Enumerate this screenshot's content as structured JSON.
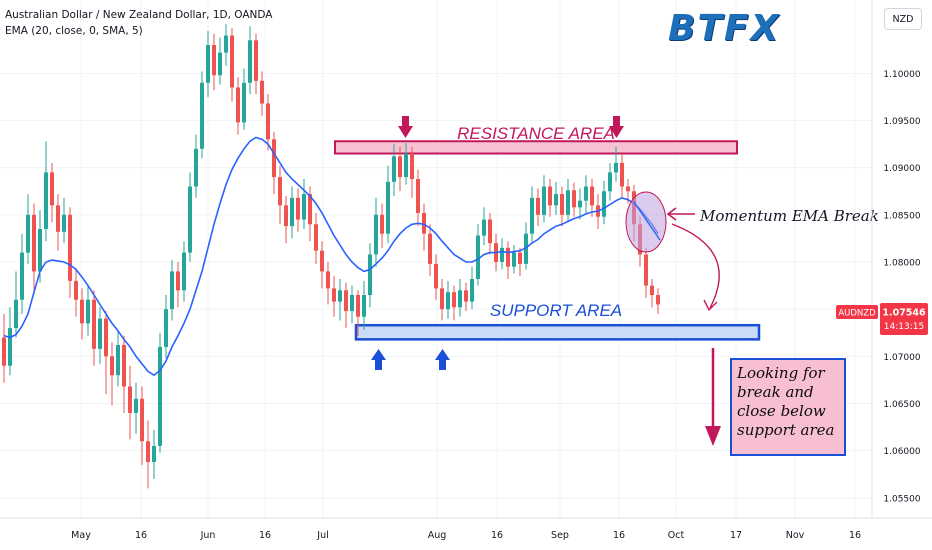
{
  "header": {
    "symbol_title": "Australian Dollar / New Zealand Dollar, 1D, OANDA",
    "indicator": "EMA (20, close, 0, SMA, 5)",
    "logo": "BTFX",
    "currency_button": "NZD"
  },
  "price_badge": {
    "symbol": "AUDNZD",
    "price": "1.07546",
    "countdown": "14:13:15",
    "color": "#f23645"
  },
  "annotations": {
    "resistance_label": "RESISTANCE AREA",
    "support_label": "SUPPORT AREA",
    "ema_break_label": "Momentum EMA Break",
    "note_text": "Looking for break and close below support area",
    "resistance_color": "#c2185b",
    "support_color": "#1a4fd6"
  },
  "chart_data": {
    "type": "candlestick",
    "ylim": [
      1.0535,
      1.1065
    ],
    "y_ticks": [
      1.055,
      1.06,
      1.065,
      1.07,
      1.075,
      1.08,
      1.085,
      1.09,
      1.095,
      1.1
    ],
    "y_tick_labels": [
      "1.05500",
      "1.06000",
      "1.06500",
      "1.07000",
      "1.07500",
      "1.08000",
      "1.08500",
      "1.09000",
      "1.09500",
      "1.10000"
    ],
    "x_labels": [
      "May",
      "16",
      "Jun",
      "16",
      "Jul",
      "Aug",
      "16",
      "Sep",
      "16",
      "Oct",
      "17",
      "Nov",
      "16"
    ],
    "resistance_zone": [
      1.0915,
      1.0928
    ],
    "support_zone": [
      1.0718,
      1.0733
    ],
    "colors": {
      "up": "#26a69a",
      "down": "#ef5350",
      "ema": "#2962ff"
    },
    "candles": [
      [
        1.072,
        1.069,
        1.0745,
        1.0672
      ],
      [
        1.069,
        1.073,
        1.0752,
        1.068
      ],
      [
        1.073,
        1.076,
        1.079,
        1.072
      ],
      [
        1.076,
        1.081,
        1.083,
        1.0745
      ],
      [
        1.081,
        1.085,
        1.0872,
        1.0798
      ],
      [
        1.085,
        1.079,
        1.0862,
        1.077
      ],
      [
        1.079,
        1.0835,
        1.0855,
        1.0778
      ],
      [
        1.0835,
        1.0895,
        1.0928,
        1.0822
      ],
      [
        1.0895,
        1.086,
        1.0905,
        1.0842
      ],
      [
        1.086,
        1.0832,
        1.0872,
        1.0812
      ],
      [
        1.0832,
        1.085,
        1.0868,
        1.082
      ],
      [
        1.085,
        1.078,
        1.0858,
        1.0762
      ],
      [
        1.078,
        1.076,
        1.0792,
        1.0742
      ],
      [
        1.076,
        1.0735,
        1.0772,
        1.0718
      ],
      [
        1.0735,
        1.076,
        1.0776,
        1.0722
      ],
      [
        1.076,
        1.0708,
        1.077,
        1.069
      ],
      [
        1.0708,
        1.074,
        1.0752,
        1.0692
      ],
      [
        1.074,
        1.07,
        1.0748,
        1.066
      ],
      [
        1.07,
        1.068,
        1.0715,
        1.0648
      ],
      [
        1.068,
        1.0712,
        1.0728,
        1.0668
      ],
      [
        1.0712,
        1.0668,
        1.0722,
        1.064
      ],
      [
        1.0668,
        1.064,
        1.069,
        1.0612
      ],
      [
        1.064,
        1.0655,
        1.0672,
        1.0618
      ],
      [
        1.0655,
        1.061,
        1.0668,
        1.0585
      ],
      [
        1.061,
        1.0588,
        1.0632,
        1.056
      ],
      [
        1.0588,
        1.0605,
        1.0622,
        1.057
      ],
      [
        1.0605,
        1.071,
        1.0725,
        1.0598
      ],
      [
        1.071,
        1.075,
        1.0765,
        1.0698
      ],
      [
        1.075,
        1.079,
        1.0802,
        1.0738
      ],
      [
        1.079,
        1.077,
        1.08,
        1.0752
      ],
      [
        1.077,
        1.081,
        1.0822,
        1.0758
      ],
      [
        1.081,
        1.088,
        1.0895,
        1.08
      ],
      [
        1.088,
        1.092,
        1.0935,
        1.0868
      ],
      [
        1.092,
        1.099,
        1.1002,
        1.091
      ],
      [
        1.099,
        1.103,
        1.1045,
        1.0975
      ],
      [
        1.103,
        1.0998,
        1.1042,
        1.0982
      ],
      [
        1.0998,
        1.1022,
        1.1038,
        1.0988
      ],
      [
        1.1022,
        1.104,
        1.1052,
        1.1008
      ],
      [
        1.104,
        1.0985,
        1.1048,
        1.097
      ],
      [
        1.0985,
        1.0948,
        1.0996,
        1.0935
      ],
      [
        1.0948,
        1.099,
        1.1005,
        1.094
      ],
      [
        1.099,
        1.1035,
        1.105,
        1.0978
      ],
      [
        1.1035,
        1.0992,
        1.1042,
        1.0978
      ],
      [
        1.0992,
        1.0968,
        1.1002,
        1.0955
      ],
      [
        1.0968,
        1.093,
        1.0978,
        1.0918
      ],
      [
        1.093,
        1.089,
        1.0938,
        1.0872
      ],
      [
        1.089,
        1.086,
        1.0902,
        1.084
      ],
      [
        1.086,
        1.0838,
        1.087,
        1.082
      ],
      [
        1.0838,
        1.0868,
        1.088,
        1.0825
      ],
      [
        1.0868,
        1.0845,
        1.0878,
        1.0832
      ],
      [
        1.0845,
        1.0872,
        1.0888,
        1.0835
      ],
      [
        1.0872,
        1.084,
        1.088,
        1.0822
      ],
      [
        1.084,
        1.0812,
        1.0852,
        1.0798
      ],
      [
        1.0812,
        1.079,
        1.0822,
        1.0772
      ],
      [
        1.079,
        1.0772,
        1.08,
        1.0755
      ],
      [
        1.0772,
        1.0758,
        1.0785,
        1.0742
      ],
      [
        1.0758,
        1.077,
        1.0782,
        1.0738
      ],
      [
        1.077,
        1.0748,
        1.0778,
        1.073
      ],
      [
        1.0748,
        1.0765,
        1.0775,
        1.0735
      ],
      [
        1.0765,
        1.0742,
        1.077,
        1.0722
      ],
      [
        1.0742,
        1.0765,
        1.078,
        1.0728
      ],
      [
        1.0765,
        1.0808,
        1.082,
        1.0752
      ],
      [
        1.0808,
        1.085,
        1.0868,
        1.0795
      ],
      [
        1.085,
        1.083,
        1.0862,
        1.0815
      ],
      [
        1.083,
        1.0885,
        1.0902,
        1.082
      ],
      [
        1.0885,
        1.0912,
        1.0925,
        1.087
      ],
      [
        1.0912,
        1.089,
        1.0922,
        1.0875
      ],
      [
        1.089,
        1.0915,
        1.0926,
        1.0882
      ],
      [
        1.0915,
        1.0888,
        1.0922,
        1.0868
      ],
      [
        1.0888,
        1.0852,
        1.0898,
        1.0838
      ],
      [
        1.0852,
        1.083,
        1.0862,
        1.0812
      ],
      [
        1.083,
        1.0798,
        1.084,
        1.0785
      ],
      [
        1.0798,
        1.0772,
        1.0808,
        1.076
      ],
      [
        1.0772,
        1.075,
        1.0782,
        1.0738
      ],
      [
        1.075,
        1.0768,
        1.078,
        1.074
      ],
      [
        1.0768,
        1.0752,
        1.0775,
        1.0738
      ],
      [
        1.0752,
        1.077,
        1.0782,
        1.0742
      ],
      [
        1.077,
        1.0758,
        1.0778,
        1.0748
      ],
      [
        1.0758,
        1.0782,
        1.0795,
        1.075
      ],
      [
        1.0782,
        1.0828,
        1.084,
        1.0775
      ],
      [
        1.0828,
        1.0845,
        1.0858,
        1.0818
      ],
      [
        1.0845,
        1.082,
        1.0852,
        1.0808
      ],
      [
        1.082,
        1.08,
        1.083,
        1.079
      ],
      [
        1.08,
        1.0815,
        1.0825,
        1.0792
      ],
      [
        1.0815,
        1.0795,
        1.0822,
        1.0782
      ],
      [
        1.0795,
        1.081,
        1.0818,
        1.0788
      ],
      [
        1.081,
        1.0798,
        1.0815,
        1.0785
      ],
      [
        1.0798,
        1.083,
        1.0842,
        1.0792
      ],
      [
        1.083,
        1.0868,
        1.088,
        1.082
      ],
      [
        1.0868,
        1.085,
        1.0878,
        1.0838
      ],
      [
        1.085,
        1.088,
        1.0892,
        1.0842
      ],
      [
        1.088,
        1.086,
        1.0888,
        1.0848
      ],
      [
        1.086,
        1.0872,
        1.0885,
        1.085
      ],
      [
        1.0872,
        1.085,
        1.088,
        1.0838
      ],
      [
        1.085,
        1.0876,
        1.0888,
        1.0842
      ],
      [
        1.0876,
        1.0858,
        1.0884,
        1.0848
      ],
      [
        1.0858,
        1.0865,
        1.0878,
        1.0845
      ],
      [
        1.0865,
        1.088,
        1.0892,
        1.0852
      ],
      [
        1.088,
        1.086,
        1.0888,
        1.0848
      ],
      [
        1.086,
        1.0848,
        1.0872,
        1.0835
      ],
      [
        1.0848,
        1.0875,
        1.0886,
        1.084
      ],
      [
        1.0875,
        1.0895,
        1.0905,
        1.0865
      ],
      [
        1.0895,
        1.0905,
        1.0922,
        1.0885
      ],
      [
        1.0905,
        1.088,
        1.0915,
        1.0868
      ],
      [
        1.088,
        1.0875,
        1.0888,
        1.0862
      ],
      [
        1.0875,
        1.084,
        1.0882,
        1.0822
      ],
      [
        1.084,
        1.0808,
        1.0848,
        1.0795
      ],
      [
        1.0808,
        1.0775,
        1.0815,
        1.0762
      ],
      [
        1.0775,
        1.0765,
        1.0782,
        1.0752
      ],
      [
        1.0765,
        1.0755,
        1.0772,
        1.0745
      ]
    ],
    "ema": [
      1.0722,
      1.072,
      1.0723,
      1.0732,
      1.0745,
      1.0768,
      1.079,
      1.08,
      1.0802,
      1.0801,
      1.08,
      1.0797,
      1.0792,
      1.0784,
      1.0775,
      1.0765,
      1.0755,
      1.0745,
      1.0735,
      1.0727,
      1.0718,
      1.071,
      1.07,
      1.0692,
      1.0684,
      1.068,
      1.0685,
      1.0695,
      1.071,
      1.0722,
      1.0735,
      1.075,
      1.077,
      1.079,
      1.0815,
      1.084,
      1.0862,
      1.0882,
      1.0898,
      1.091,
      1.092,
      1.0928,
      1.0932,
      1.093,
      1.0925,
      1.0915,
      1.0905,
      1.0895,
      1.0888,
      1.0882,
      1.0876,
      1.087,
      1.0862,
      1.0852,
      1.084,
      1.0828,
      1.0818,
      1.0808,
      1.08,
      1.0794,
      1.079,
      1.0792,
      1.0798,
      1.0804,
      1.0812,
      1.0822,
      1.083,
      1.0836,
      1.084,
      1.0841,
      1.084,
      1.0836,
      1.083,
      1.0822,
      1.0815,
      1.0808,
      1.0804,
      1.08,
      1.08,
      1.0803,
      1.0808,
      1.081,
      1.081,
      1.0811,
      1.081,
      1.0811,
      1.0812,
      1.0815,
      1.082,
      1.0824,
      1.083,
      1.0834,
      1.0838,
      1.084,
      1.0843,
      1.0846,
      1.0848,
      1.0851,
      1.0853,
      1.0854,
      1.0857,
      1.0861,
      1.0865,
      1.0868,
      1.0866,
      1.0862,
      1.0856,
      1.0848,
      1.084,
      1.083
    ]
  }
}
